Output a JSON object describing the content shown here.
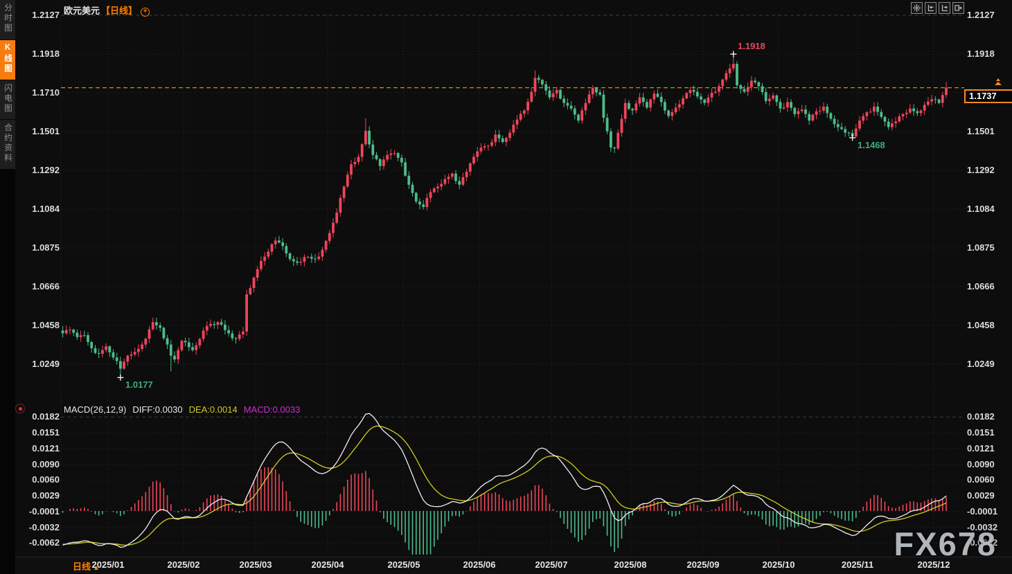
{
  "app": {
    "sidebar": {
      "tabs": [
        {
          "label": "分时图",
          "active": false
        },
        {
          "label": "K线图",
          "active": true
        },
        {
          "label": "闪电图",
          "active": false
        },
        {
          "label": "合约资料",
          "active": false
        }
      ]
    },
    "title": {
      "instrument": "欧元美元",
      "period_tag": "【日线】"
    },
    "toolbar_icons": [
      "crosshair-icon",
      "time-zoom-in-icon",
      "time-zoom-out-icon",
      "restore-view-icon"
    ],
    "price_tag": {
      "value": "1.1737"
    },
    "bottom_bar": {
      "period_label": "日线",
      "period_arrow": "▲"
    },
    "watermark": "FX678"
  },
  "colors": {
    "up_candle": "#ef455a",
    "down_candle": "#4cbc8b",
    "accent_orange": "#ff7e00",
    "current_price_line": "#ff9500",
    "diff_line": "#f0f0f0",
    "dea_line": "#d4cd23",
    "macd_value_text": "#cc2fd0",
    "annotation_low": "#3fae7d",
    "annotation_high": "#e8475d"
  },
  "chart_data": {
    "type": "candlestick",
    "instrument": "欧元美元",
    "period": "日线",
    "price_panel": {
      "y_axis_labels": [
        "1.2127",
        "1.1918",
        "1.1710",
        "1.1501",
        "1.1292",
        "1.1084",
        "1.0875",
        "1.0666",
        "1.0458",
        "1.0249"
      ],
      "ylim": [
        1.0249,
        1.2127
      ],
      "current_price": 1.1737,
      "extremes": [
        {
          "day": 16,
          "type": "low",
          "price": 1.0177,
          "annotated": true,
          "label": "1.0177",
          "color": "green"
        },
        {
          "day": 30,
          "type": "low",
          "price": 1.021,
          "annotated": false
        },
        {
          "day": 84,
          "type": "high",
          "price": 1.1573,
          "annotated": false
        },
        {
          "day": 131,
          "type": "high",
          "price": 1.183,
          "annotated": false
        },
        {
          "day": 152,
          "type": "low",
          "price": 1.1392,
          "annotated": false
        },
        {
          "day": 186,
          "type": "high",
          "price": 1.1918,
          "annotated": true,
          "label": "1.1918",
          "color": "red"
        },
        {
          "day": 219,
          "type": "low",
          "price": 1.1468,
          "annotated": true,
          "label": "1.1468",
          "color": "green"
        },
        {
          "day": 245,
          "type": "high",
          "price": 1.1768,
          "annotated": false
        }
      ],
      "close_waypoints": [
        [
          0,
          1.0415
        ],
        [
          2,
          1.0435
        ],
        [
          4,
          1.0395
        ],
        [
          6,
          1.0405
        ],
        [
          8,
          1.0335
        ],
        [
          10,
          1.0305
        ],
        [
          12,
          1.0345
        ],
        [
          14,
          1.0285
        ],
        [
          16,
          1.0225
        ],
        [
          18,
          1.0295
        ],
        [
          20,
          1.0315
        ],
        [
          22,
          1.0355
        ],
        [
          25,
          1.0475
        ],
        [
          27,
          1.0445
        ],
        [
          29,
          1.0355
        ],
        [
          30,
          1.0295
        ],
        [
          31,
          1.0275
        ],
        [
          33,
          1.0375
        ],
        [
          36,
          1.0325
        ],
        [
          38,
          1.0385
        ],
        [
          40,
          1.0455
        ],
        [
          43,
          1.0475
        ],
        [
          46,
          1.0415
        ],
        [
          48,
          1.0385
        ],
        [
          50,
          1.0425
        ],
        [
          51,
          1.0625
        ],
        [
          53,
          1.0715
        ],
        [
          55,
          1.0805
        ],
        [
          57,
          1.0855
        ],
        [
          59,
          1.0915
        ],
        [
          61,
          1.0885
        ],
        [
          63,
          1.0815
        ],
        [
          65,
          1.0795
        ],
        [
          67,
          1.0825
        ],
        [
          70,
          1.0815
        ],
        [
          72,
          1.0865
        ],
        [
          74,
          1.0955
        ],
        [
          76,
          1.1065
        ],
        [
          78,
          1.1205
        ],
        [
          80,
          1.1325
        ],
        [
          82,
          1.1365
        ],
        [
          84,
          1.1505
        ],
        [
          86,
          1.1375
        ],
        [
          88,
          1.1315
        ],
        [
          90,
          1.1375
        ],
        [
          92,
          1.1385
        ],
        [
          94,
          1.1335
        ],
        [
          96,
          1.1215
        ],
        [
          98,
          1.1125
        ],
        [
          100,
          1.1095
        ],
        [
          102,
          1.1175
        ],
        [
          104,
          1.1205
        ],
        [
          106,
          1.1245
        ],
        [
          108,
          1.1275
        ],
        [
          110,
          1.1215
        ],
        [
          112,
          1.1285
        ],
        [
          114,
          1.1365
        ],
        [
          116,
          1.1415
        ],
        [
          118,
          1.1425
        ],
        [
          120,
          1.1485
        ],
        [
          122,
          1.1445
        ],
        [
          124,
          1.1495
        ],
        [
          126,
          1.1565
        ],
        [
          128,
          1.1615
        ],
        [
          130,
          1.1715
        ],
        [
          131,
          1.179
        ],
        [
          133,
          1.1755
        ],
        [
          135,
          1.1685
        ],
        [
          137,
          1.1725
        ],
        [
          139,
          1.1655
        ],
        [
          141,
          1.1625
        ],
        [
          143,
          1.156
        ],
        [
          145,
          1.1655
        ],
        [
          147,
          1.1735
        ],
        [
          149,
          1.17
        ],
        [
          150,
          1.1575
        ],
        [
          152,
          1.1415
        ],
        [
          153,
          1.141
        ],
        [
          155,
          1.157
        ],
        [
          156,
          1.1655
        ],
        [
          158,
          1.1615
        ],
        [
          160,
          1.1685
        ],
        [
          162,
          1.163
        ],
        [
          164,
          1.1705
        ],
        [
          166,
          1.166
        ],
        [
          168,
          1.1585
        ],
        [
          170,
          1.163
        ],
        [
          172,
          1.168
        ],
        [
          174,
          1.1725
        ],
        [
          176,
          1.169
        ],
        [
          178,
          1.1655
        ],
        [
          180,
          1.171
        ],
        [
          182,
          1.1745
        ],
        [
          184,
          1.1815
        ],
        [
          186,
          1.1865
        ],
        [
          187,
          1.175
        ],
        [
          189,
          1.1715
        ],
        [
          191,
          1.1775
        ],
        [
          193,
          1.1745
        ],
        [
          195,
          1.1665
        ],
        [
          197,
          1.1695
        ],
        [
          199,
          1.1625
        ],
        [
          201,
          1.166
        ],
        [
          203,
          1.1595
        ],
        [
          205,
          1.162
        ],
        [
          207,
          1.156
        ],
        [
          209,
          1.161
        ],
        [
          211,
          1.1635
        ],
        [
          213,
          1.157
        ],
        [
          215,
          1.1525
        ],
        [
          217,
          1.1495
        ],
        [
          219,
          1.1475
        ],
        [
          221,
          1.156
        ],
        [
          223,
          1.1605
        ],
        [
          225,
          1.1635
        ],
        [
          227,
          1.158
        ],
        [
          229,
          1.1525
        ],
        [
          231,
          1.1555
        ],
        [
          233,
          1.1595
        ],
        [
          235,
          1.1625
        ],
        [
          237,
          1.16
        ],
        [
          239,
          1.1645
        ],
        [
          241,
          1.1675
        ],
        [
          243,
          1.1655
        ],
        [
          245,
          1.1737
        ]
      ]
    },
    "macd_panel": {
      "params_label": "MACD(26,12,9)",
      "diff_label": "DIFF:0.0030",
      "dea_label": "DEA:0.0014",
      "macd_label": "MACD:0.0033",
      "diff": 0.003,
      "dea": 0.0014,
      "macd": 0.0033,
      "y_axis_labels": [
        "0.0182",
        "0.0151",
        "0.0121",
        "0.0090",
        "0.0060",
        "0.0029",
        "-0.0001",
        "-0.0032",
        "-0.0062"
      ]
    },
    "x_axis": {
      "labels": [
        "2025/01",
        "2025/02",
        "2025/03",
        "2025/04",
        "2025/05",
        "2025/06",
        "2025/07",
        "2025/08",
        "2025/09",
        "2025/10",
        "2025/11",
        "2025/12"
      ],
      "month_start_days": [
        13,
        34,
        54,
        74,
        95,
        116,
        136,
        158,
        178,
        199,
        221,
        242
      ],
      "total_days": 246
    }
  }
}
